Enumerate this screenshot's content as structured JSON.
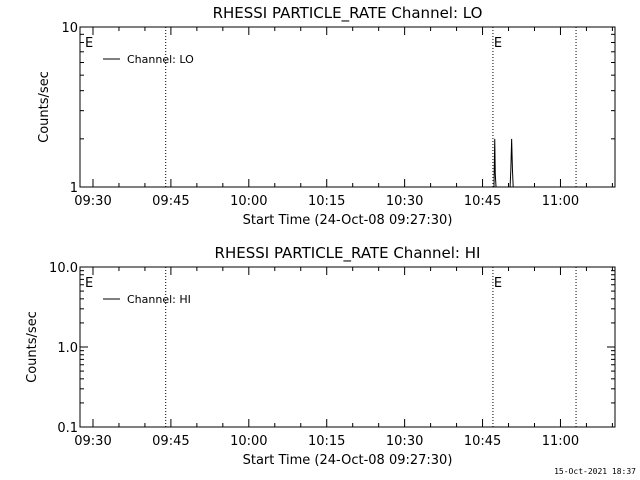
{
  "chart_data": [
    {
      "type": "line",
      "title": "RHESSI PARTICLE_RATE Channel: LO",
      "xlabel": "Start Time (24-Oct-08 09:27:30)",
      "ylabel": "Counts/sec",
      "yscale": "log",
      "ylim": [
        1,
        10
      ],
      "y_ticks": [
        "1",
        "10"
      ],
      "xlim": [
        "09:27:30",
        "11:10:30"
      ],
      "x_ticks": [
        "09:30",
        "09:45",
        "10:00",
        "10:15",
        "10:30",
        "10:45",
        "11:00"
      ],
      "x_tick_minutes": [
        2.5,
        17.5,
        32.5,
        47.5,
        62.5,
        77.5,
        92.5
      ],
      "legend": {
        "label": "Channel: LO",
        "position": "top-left"
      },
      "markers": [
        {
          "label": "E",
          "x_minutes": 0
        },
        {
          "label": "",
          "x_minutes": 16.5
        },
        {
          "label": "E",
          "x_minutes": 79.5
        },
        {
          "label": "",
          "x_minutes": 95.5
        }
      ],
      "series": [
        {
          "name": "Channel: LO",
          "points": [
            [
              79.7,
              1
            ],
            [
              79.85,
              2
            ],
            [
              79.95,
              1.2
            ],
            [
              80.1,
              1
            ],
            [
              82.8,
              1
            ],
            [
              82.95,
              1.3
            ],
            [
              83.1,
              2
            ],
            [
              83.25,
              1.3
            ],
            [
              83.4,
              1
            ]
          ]
        }
      ]
    },
    {
      "type": "line",
      "title": "RHESSI PARTICLE_RATE Channel: HI",
      "xlabel": "Start Time (24-Oct-08 09:27:30)",
      "ylabel": "Counts/sec",
      "yscale": "log",
      "ylim": [
        0.1,
        10
      ],
      "y_ticks": [
        "0.1",
        "1.0",
        "10.0"
      ],
      "xlim": [
        "09:27:30",
        "11:10:30"
      ],
      "x_ticks": [
        "09:30",
        "09:45",
        "10:00",
        "10:15",
        "10:30",
        "10:45",
        "11:00"
      ],
      "x_tick_minutes": [
        2.5,
        17.5,
        32.5,
        47.5,
        62.5,
        77.5,
        92.5
      ],
      "legend": {
        "label": "Channel: HI",
        "position": "top-left"
      },
      "markers": [
        {
          "label": "E",
          "x_minutes": 0
        },
        {
          "label": "",
          "x_minutes": 16.5
        },
        {
          "label": "E",
          "x_minutes": 79.5
        },
        {
          "label": "",
          "x_minutes": 95.5
        }
      ],
      "series": [
        {
          "name": "Channel: HI",
          "points": []
        }
      ]
    }
  ],
  "footer": {
    "timestamp": "15-Oct-2021 18:37"
  }
}
